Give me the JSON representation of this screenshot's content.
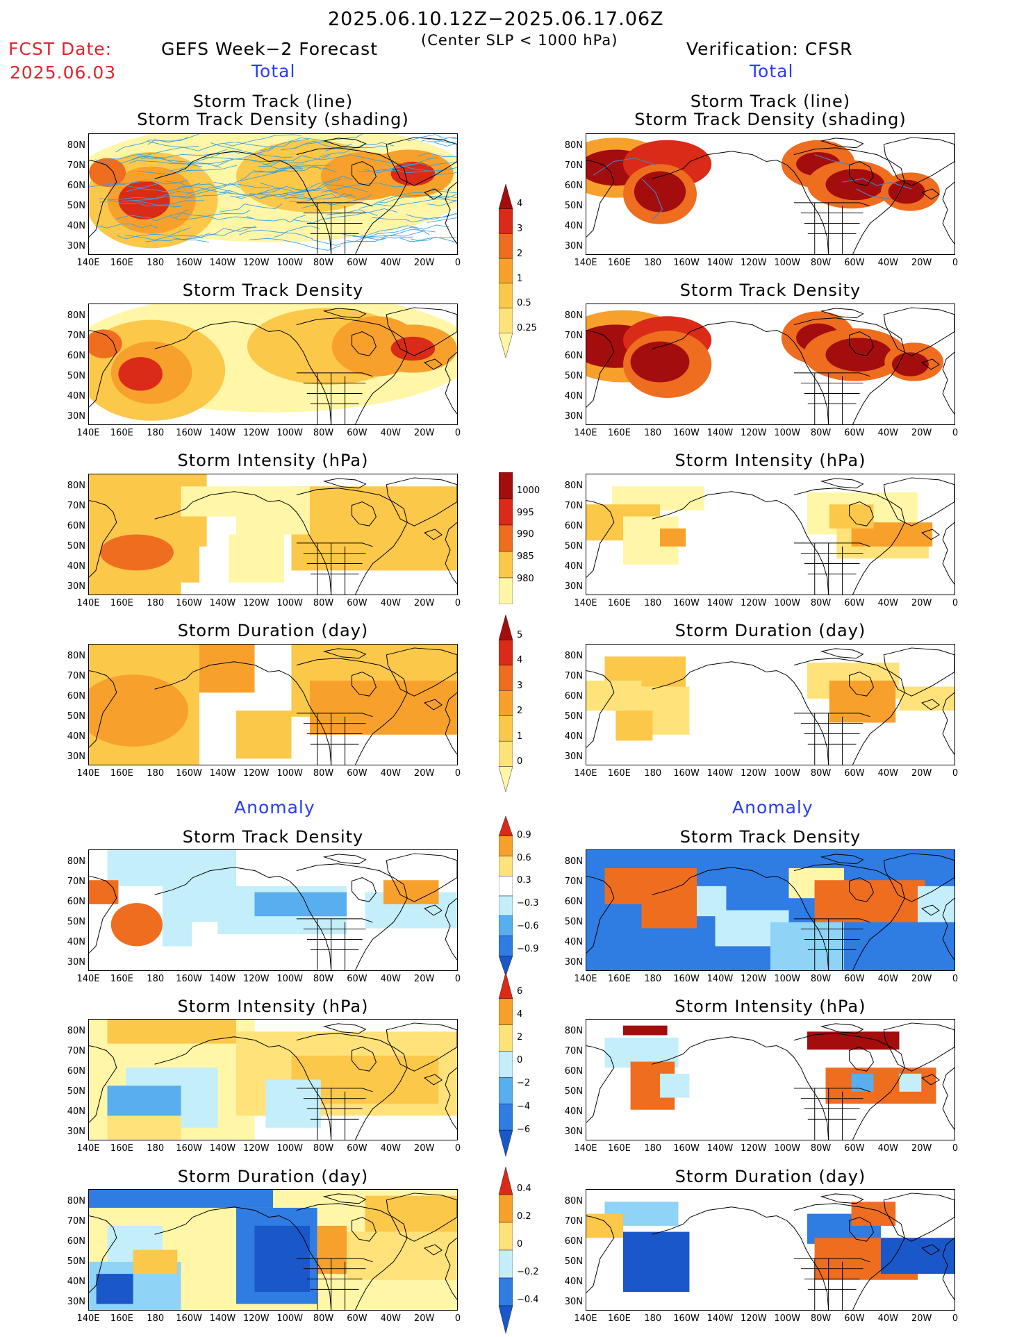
{
  "header": {
    "date_range": "2025.06.10.12Z−2025.06.17.06Z",
    "subtitle": "(Center SLP < 1000 hPa)",
    "fcst_label": "FCST Date:",
    "fcst_date": "2025.06.03",
    "left_title": "GEFS Week−2 Forecast",
    "right_title": "Verification: CFSR"
  },
  "sections": {
    "total": "Total",
    "anomaly": "Anomaly"
  },
  "panel_titles": {
    "track_line": "Storm Track (line)",
    "track_shading": "Storm Track Density (shading)",
    "density": "Storm Track Density",
    "intensity": "Storm Intensity (hPa)",
    "duration": "Storm Duration (day)"
  },
  "axes": {
    "lat_labels": [
      "80N",
      "70N",
      "60N",
      "50N",
      "40N",
      "30N"
    ],
    "lon_labels": [
      "140E",
      "160E",
      "180",
      "160W",
      "140W",
      "120W",
      "100W",
      "80W",
      "60W",
      "40W",
      "20W",
      "0"
    ]
  },
  "colorbars": {
    "density_total": [
      "4",
      "3",
      "2",
      "1",
      "0.5",
      "0.25"
    ],
    "intensity_total": [
      "1000",
      "995",
      "990",
      "985",
      "980"
    ],
    "duration_total": [
      "5",
      "4",
      "3",
      "2",
      "1",
      "0"
    ],
    "density_anom": [
      "0.9",
      "0.6",
      "0.3",
      "−0.3",
      "−0.6",
      "−0.9"
    ],
    "intensity_anom": [
      "6",
      "4",
      "2",
      "0",
      "−2",
      "−4",
      "−6"
    ],
    "duration_anom": [
      "0.4",
      "0.2",
      "0",
      "−0.2",
      "−0.4"
    ]
  },
  "colors": {
    "warm": [
      "#fff6a8",
      "#ffe27a",
      "#fcc84a",
      "#f7a12c",
      "#ef6d1f",
      "#d92b18",
      "#a30d0d"
    ],
    "cool": [
      "#c4eefa",
      "#8fd3f7",
      "#58aeee",
      "#2f7ce3",
      "#1a57c9"
    ],
    "track_line": "#3aa0e0",
    "coast": "#000000"
  }
}
